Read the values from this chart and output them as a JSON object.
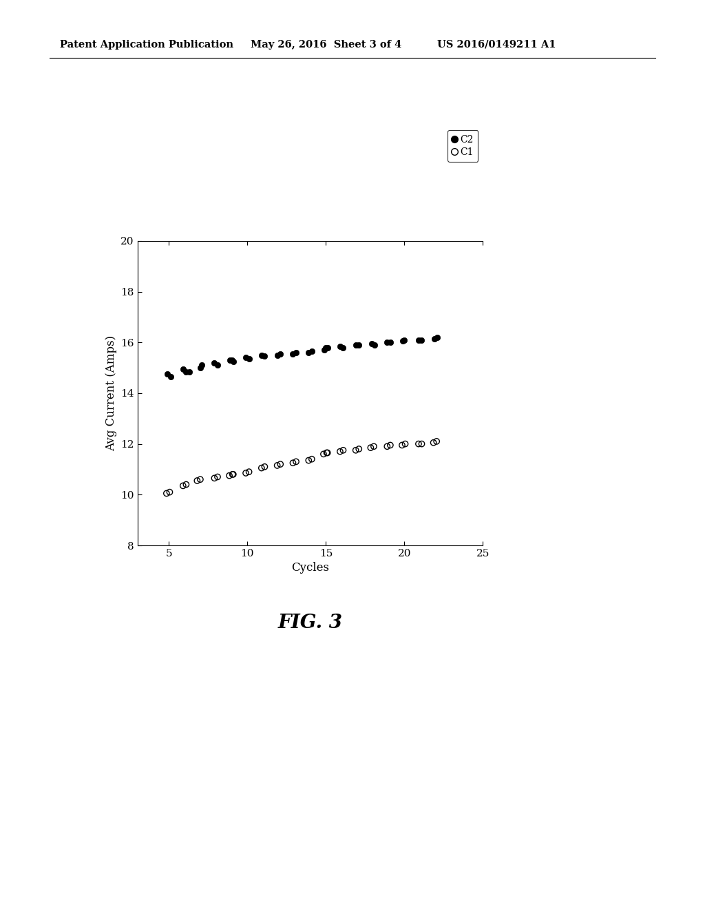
{
  "title_header": "Patent Application Publication",
  "title_date": "May 26, 2016  Sheet 3 of 4",
  "title_patent": "US 2016/0149211 A1",
  "fig_label": "FIG. 3",
  "xlabel": "Cycles",
  "ylabel": "Avg Current (Amps)",
  "xlim": [
    3,
    25
  ],
  "ylim": [
    8,
    20
  ],
  "xticks": [
    5,
    10,
    15,
    20,
    25
  ],
  "yticks": [
    8,
    10,
    12,
    14,
    16,
    18,
    20
  ],
  "C2_x": [
    4.9,
    5.1,
    5.9,
    6.1,
    6.3,
    7.0,
    7.1,
    7.9,
    8.1,
    8.9,
    9.0,
    9.1,
    9.9,
    10.1,
    10.9,
    11.1,
    11.9,
    12.1,
    12.9,
    13.1,
    13.9,
    14.1,
    14.9,
    15.0,
    15.1,
    15.9,
    16.1,
    16.9,
    17.1,
    17.9,
    18.1,
    18.9,
    19.1,
    19.9,
    20.0,
    20.9,
    21.1,
    21.9,
    22.1
  ],
  "C2_y": [
    14.75,
    14.65,
    14.95,
    14.85,
    14.85,
    15.0,
    15.1,
    15.2,
    15.1,
    15.3,
    15.3,
    15.25,
    15.4,
    15.35,
    15.5,
    15.45,
    15.5,
    15.55,
    15.55,
    15.6,
    15.6,
    15.65,
    15.7,
    15.8,
    15.8,
    15.85,
    15.8,
    15.9,
    15.9,
    15.95,
    15.9,
    16.0,
    16.0,
    16.05,
    16.1,
    16.1,
    16.1,
    16.15,
    16.2
  ],
  "C1_x": [
    4.85,
    5.05,
    5.9,
    6.1,
    6.8,
    7.0,
    7.9,
    8.1,
    8.85,
    9.05,
    9.1,
    9.9,
    10.1,
    10.9,
    11.1,
    11.9,
    12.1,
    12.9,
    13.1,
    13.9,
    14.1,
    14.85,
    15.05,
    15.1,
    15.9,
    16.1,
    16.9,
    17.1,
    17.85,
    18.05,
    18.9,
    19.1,
    19.85,
    20.05,
    20.9,
    21.1,
    21.85,
    22.05
  ],
  "C1_y": [
    10.05,
    10.1,
    10.35,
    10.4,
    10.55,
    10.6,
    10.65,
    10.7,
    10.75,
    10.8,
    10.8,
    10.85,
    10.9,
    11.05,
    11.1,
    11.15,
    11.2,
    11.25,
    11.3,
    11.35,
    11.4,
    11.6,
    11.65,
    11.65,
    11.7,
    11.75,
    11.75,
    11.8,
    11.85,
    11.9,
    11.9,
    11.95,
    11.95,
    12.0,
    12.0,
    12.0,
    12.05,
    12.1
  ],
  "background_color": "#ffffff",
  "marker_color": "#000000",
  "marker_size_filled": 6,
  "marker_size_open": 6,
  "header_fontsize": 10.5,
  "axis_label_fontsize": 12,
  "tick_fontsize": 11,
  "fig_label_fontsize": 20,
  "legend_fontsize": 10
}
